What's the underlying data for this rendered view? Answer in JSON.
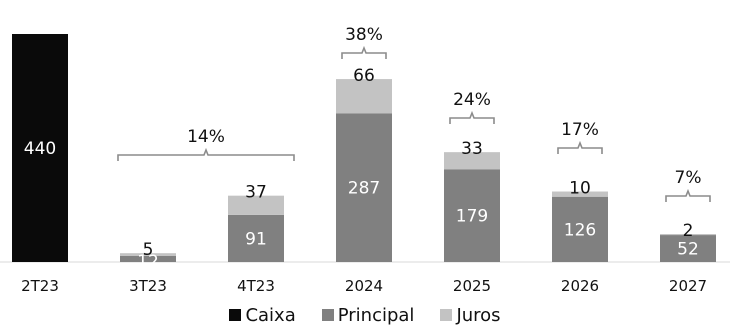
{
  "chart_data": {
    "type": "bar",
    "stacked": true,
    "categories": [
      "2T23",
      "3T23",
      "4T23",
      "2024",
      "2025",
      "2026",
      "2027"
    ],
    "series": [
      {
        "name": "Caixa",
        "color": "#0a0a0a",
        "values": [
          440,
          0,
          0,
          0,
          0,
          0,
          0
        ],
        "label_color": "#ffffff"
      },
      {
        "name": "Principal",
        "color": "#808080",
        "values": [
          0,
          12,
          91,
          287,
          179,
          126,
          52
        ],
        "label_color": "#ffffff"
      },
      {
        "name": "Juros",
        "color": "#c3c3c3",
        "values": [
          0,
          5,
          37,
          66,
          33,
          10,
          2
        ],
        "label_color": "#111111"
      }
    ],
    "brackets": [
      {
        "label": "14%",
        "from": "3T23",
        "to": "4T23"
      },
      {
        "label": "38%",
        "from": "2024",
        "to": "2024"
      },
      {
        "label": "24%",
        "from": "2025",
        "to": "2025"
      },
      {
        "label": "17%",
        "from": "2026",
        "to": "2026"
      },
      {
        "label": "7%",
        "from": "2027",
        "to": "2027"
      }
    ],
    "ylim": [
      0,
      440
    ],
    "grid": false,
    "legend_position": "bottom-center"
  }
}
